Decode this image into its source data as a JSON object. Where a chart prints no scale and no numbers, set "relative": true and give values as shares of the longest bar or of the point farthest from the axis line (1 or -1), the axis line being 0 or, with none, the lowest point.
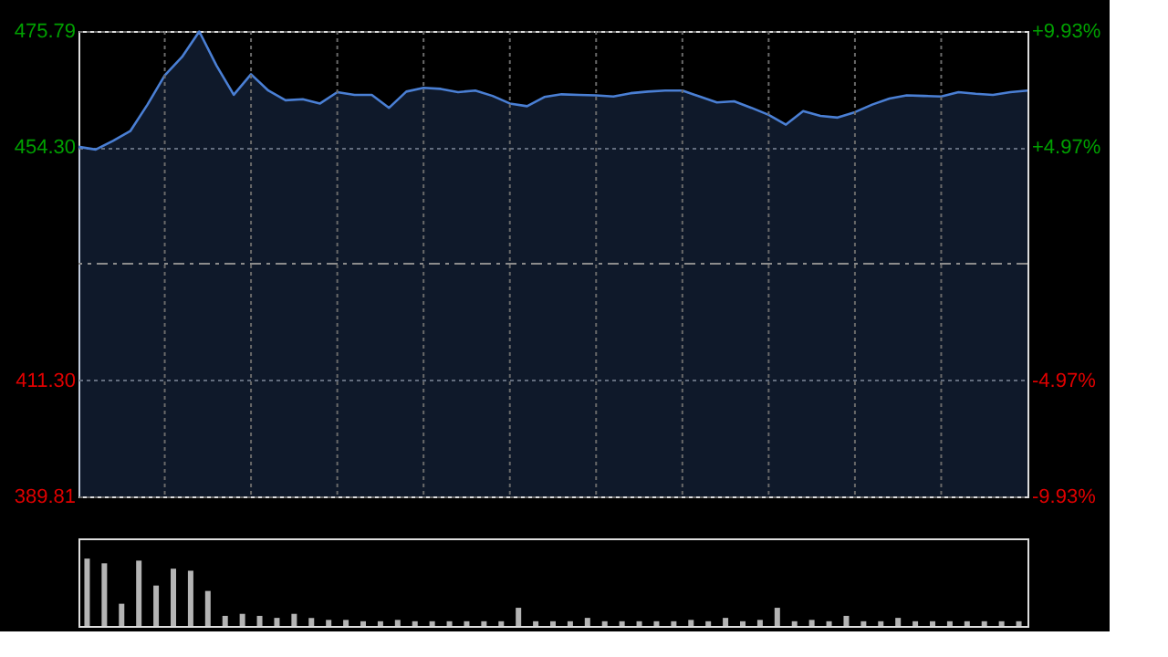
{
  "chart_data": [
    {
      "type": "area",
      "tick_labels": "y",
      "categories": [
        null,
        null,
        null,
        null,
        null,
        null,
        null,
        null,
        null,
        null,
        null,
        null,
        null,
        null,
        null,
        null,
        null,
        null,
        null,
        null,
        null,
        null,
        null,
        null,
        null,
        null,
        null,
        null,
        null,
        null,
        null,
        null,
        null,
        null,
        null,
        null,
        null,
        null,
        null,
        null,
        null,
        null,
        null,
        null,
        null,
        null,
        null,
        null,
        null,
        null,
        null,
        null,
        null,
        null,
        null,
        null
      ],
      "ylim": [
        389.81,
        475.79
      ],
      "yticks": [
        389.81,
        {
          "value": 411.3,
          "label": "411.30"
        },
        {
          "value": 454.3,
          "label": "454.30"
        },
        475.79
      ],
      "y2lim": [
        -9.93,
        9.93
      ],
      "y2ticks": [
        {
          "value": -9.93,
          "label": "-9.93%"
        },
        {
          "value": -4.97,
          "label": "-4.97%"
        },
        {
          "value": 4.97,
          "label": "+4.97%"
        },
        {
          "value": 9.93,
          "label": "+9.93%"
        }
      ],
      "grid": true,
      "ref_lines": [
        {
          "axis": "y",
          "value": 432.8,
          "color": "#8c8c8c",
          "line_style": "dashed"
        }
      ],
      "series": [
        {
          "color": "#4a7fd4",
          "values": [
            454.4,
            453.9,
            455.5,
            457.3,
            462.2,
            467.6,
            471.0,
            475.7,
            469.4,
            464.0,
            467.8,
            464.8,
            463.0,
            463.2,
            462.4,
            464.5,
            464.0,
            464.0,
            461.6,
            464.6,
            465.3,
            465.1,
            464.5,
            464.8,
            463.8,
            462.4,
            461.9,
            463.6,
            464.1,
            464.0,
            463.9,
            463.7,
            464.3,
            464.6,
            464.8,
            464.8,
            463.7,
            462.6,
            462.8,
            461.6,
            460.3,
            458.5,
            461.0,
            460.1,
            459.8,
            460.8,
            462.2,
            463.3,
            463.9,
            463.8,
            463.7,
            464.5,
            464.2,
            464.0,
            464.5,
            464.8
          ]
        }
      ]
    },
    {
      "type": "bar",
      "relative": true,
      "tick_labels": false,
      "color": "#b4b4b4",
      "categories": [
        null,
        null,
        null,
        null,
        null,
        null,
        null,
        null,
        null,
        null,
        null,
        null,
        null,
        null,
        null,
        null,
        null,
        null,
        null,
        null,
        null,
        null,
        null,
        null,
        null,
        null,
        null,
        null,
        null,
        null,
        null,
        null,
        null,
        null,
        null,
        null,
        null,
        null,
        null,
        null,
        null,
        null,
        null,
        null,
        null,
        null,
        null,
        null,
        null,
        null,
        null,
        null,
        null,
        null,
        null
      ],
      "values": [
        1,
        0.93,
        0.33,
        0.97,
        0.6,
        0.85,
        0.82,
        0.52,
        0.15,
        0.18,
        0.15,
        0.12,
        0.18,
        0.12,
        0.09,
        0.09,
        0.07,
        0.07,
        0.09,
        0.07,
        0.07,
        0.07,
        0.07,
        0.07,
        0.07,
        0.27,
        0.07,
        0.07,
        0.07,
        0.12,
        0.07,
        0.07,
        0.07,
        0.07,
        0.07,
        0.09,
        0.07,
        0.12,
        0.07,
        0.09,
        0.27,
        0.07,
        0.09,
        0.07,
        0.15,
        0.07,
        0.07,
        0.12,
        0.07,
        0.07,
        0.07,
        0.07,
        0.07,
        0.07,
        0.07
      ]
    }
  ]
}
